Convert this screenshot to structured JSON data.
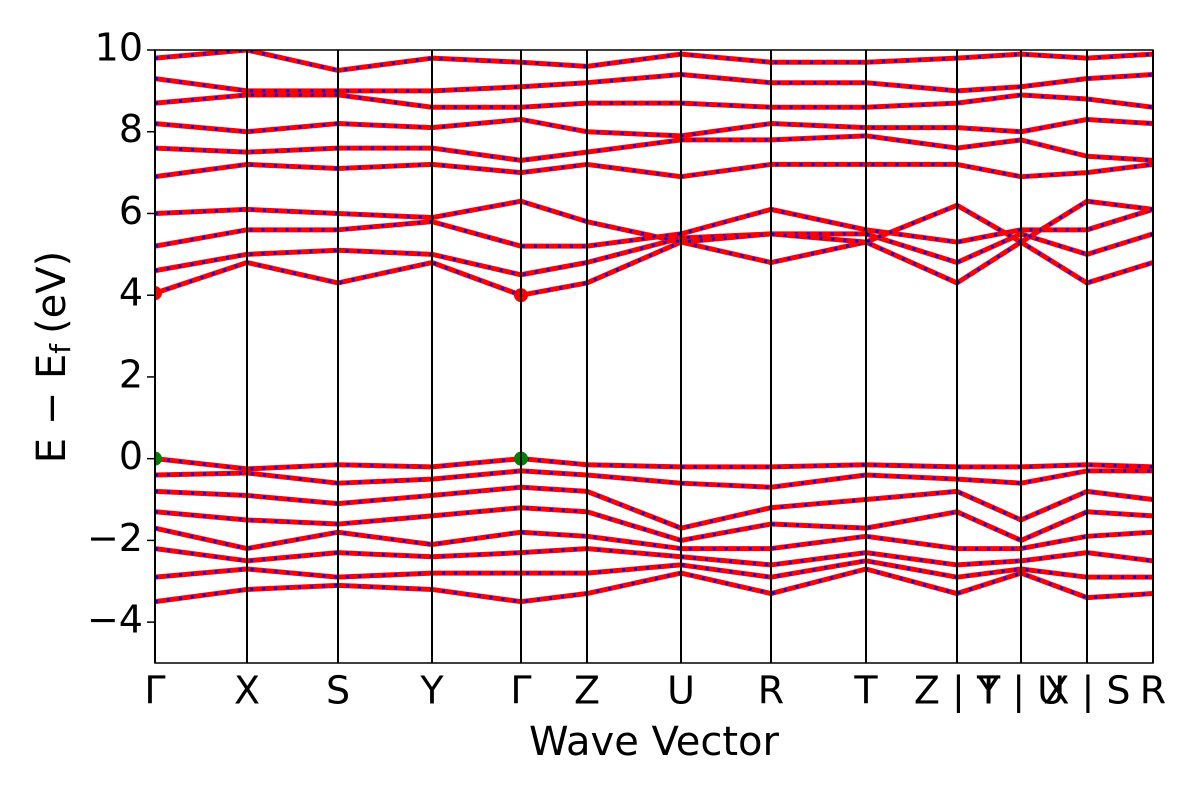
{
  "chart_data": {
    "type": "line",
    "xlabel": "Wave Vector",
    "ylabel": {
      "main": "E − E",
      "sub": "f",
      "unit": "(eV)"
    },
    "x": [
      0,
      0.92,
      1.83,
      2.77,
      3.66,
      4.32,
      5.26,
      6.16,
      7.11,
      8.02,
      8.66,
      9.32,
      9.98
    ],
    "xlim": [
      0,
      9.98
    ],
    "xticks": [
      {
        "value": 0,
        "label": "Γ"
      },
      {
        "value": 0.92,
        "label": "X"
      },
      {
        "value": 1.83,
        "label": "S"
      },
      {
        "value": 2.77,
        "label": "Y"
      },
      {
        "value": 3.66,
        "label": "Γ"
      },
      {
        "value": 4.32,
        "label": "Z"
      },
      {
        "value": 5.26,
        "label": "U"
      },
      {
        "value": 6.16,
        "label": "R"
      },
      {
        "value": 7.11,
        "label": "T"
      },
      {
        "value": 8.02,
        "label": "Z | Y"
      },
      {
        "value": 8.66,
        "label": "T | U"
      },
      {
        "value": 9.32,
        "label": "X | S"
      },
      {
        "value": 9.98,
        "label": "R"
      }
    ],
    "ylim": [
      -5,
      10
    ],
    "yticks": [
      {
        "value": -4,
        "label": "−4"
      },
      {
        "value": -2,
        "label": "−2"
      },
      0,
      2,
      4,
      6,
      8,
      10
    ],
    "color": "#ff0000",
    "dash_color": "#0000ff",
    "series": [
      {
        "values": [
          0,
          -0.25,
          -0.15,
          -0.2,
          0,
          -0.15,
          -0.2,
          -0.2,
          -0.15,
          -0.2,
          -0.2,
          -0.15,
          -0.2
        ]
      },
      {
        "values": [
          -0.4,
          -0.35,
          -0.6,
          -0.5,
          -0.3,
          -0.4,
          -0.6,
          -0.7,
          -0.4,
          -0.5,
          -0.6,
          -0.3,
          -0.3
        ]
      },
      {
        "values": [
          -0.8,
          -0.9,
          -1.1,
          -0.9,
          -0.7,
          -0.8,
          -1.7,
          -1.2,
          -1.0,
          -0.8,
          -1.5,
          -0.8,
          -1.0
        ]
      },
      {
        "values": [
          -1.3,
          -1.5,
          -1.6,
          -1.4,
          -1.2,
          -1.3,
          -2.0,
          -1.6,
          -1.7,
          -1.3,
          -2.0,
          -1.3,
          -1.4
        ]
      },
      {
        "values": [
          -1.7,
          -2.2,
          -1.8,
          -2.1,
          -1.8,
          -1.9,
          -2.2,
          -2.2,
          -1.9,
          -2.2,
          -2.2,
          -1.9,
          -1.8
        ]
      },
      {
        "values": [
          -2.2,
          -2.5,
          -2.3,
          -2.4,
          -2.3,
          -2.2,
          -2.4,
          -2.6,
          -2.3,
          -2.6,
          -2.5,
          -2.3,
          -2.5
        ]
      },
      {
        "values": [
          -2.9,
          -2.7,
          -2.9,
          -2.8,
          -2.8,
          -2.8,
          -2.6,
          -2.9,
          -2.5,
          -2.9,
          -2.7,
          -2.9,
          -2.9
        ]
      },
      {
        "values": [
          -3.5,
          -3.2,
          -3.1,
          -3.2,
          -3.5,
          -3.3,
          -2.8,
          -3.3,
          -2.7,
          -3.3,
          -2.8,
          -3.4,
          -3.3
        ]
      },
      {
        "values": [
          4.05,
          4.8,
          4.3,
          4.8,
          4.0,
          4.3,
          5.3,
          4.8,
          5.3,
          4.3,
          5.3,
          4.3,
          4.8
        ]
      },
      {
        "values": [
          4.6,
          5.0,
          5.1,
          5.0,
          4.5,
          4.8,
          5.4,
          5.5,
          5.5,
          4.8,
          5.5,
          5.0,
          5.5
        ]
      },
      {
        "values": [
          5.2,
          5.6,
          5.6,
          5.8,
          5.2,
          5.2,
          5.5,
          6.1,
          5.6,
          5.3,
          5.6,
          5.6,
          6.1
        ]
      },
      {
        "values": [
          6.0,
          6.1,
          6.0,
          5.9,
          6.3,
          5.8,
          5.3,
          5.5,
          5.3,
          6.2,
          5.3,
          6.3,
          6.1
        ]
      },
      {
        "values": [
          6.9,
          7.2,
          7.1,
          7.2,
          7.0,
          7.2,
          6.9,
          7.2,
          7.2,
          7.2,
          6.9,
          7.0,
          7.2
        ]
      },
      {
        "values": [
          7.6,
          7.5,
          7.6,
          7.6,
          7.3,
          7.5,
          7.8,
          7.8,
          7.9,
          7.6,
          7.8,
          7.4,
          7.3
        ]
      },
      {
        "values": [
          8.2,
          8.0,
          8.2,
          8.1,
          8.3,
          8.0,
          7.9,
          8.2,
          8.1,
          8.1,
          8.0,
          8.3,
          8.2
        ]
      },
      {
        "values": [
          8.7,
          8.9,
          8.9,
          8.6,
          8.6,
          8.7,
          8.7,
          8.6,
          8.6,
          8.7,
          8.9,
          8.8,
          8.6
        ]
      },
      {
        "values": [
          9.3,
          9.0,
          9.0,
          9.0,
          9.1,
          9.2,
          9.4,
          9.2,
          9.2,
          9.0,
          9.1,
          9.3,
          9.4
        ]
      },
      {
        "values": [
          9.8,
          10.0,
          9.5,
          9.8,
          9.7,
          9.6,
          9.9,
          9.7,
          9.7,
          9.8,
          9.9,
          9.8,
          9.9
        ]
      }
    ],
    "vbm": {
      "x": [
        0,
        3.66
      ],
      "y": [
        0,
        0
      ],
      "color": "#008000"
    },
    "cbm": {
      "x": [
        0,
        3.66
      ],
      "y": [
        4.05,
        4.0
      ],
      "color": "#ff0000"
    }
  }
}
